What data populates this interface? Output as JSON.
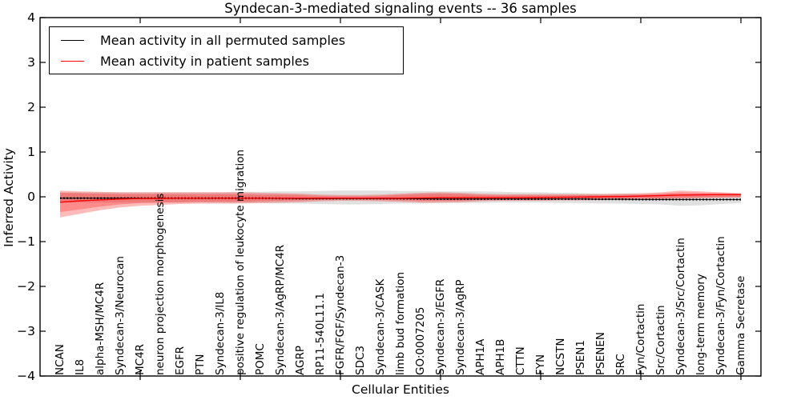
{
  "colors": {
    "permuted_line": "#000000",
    "patient_line": "#ff0000",
    "permuted_band": "rgba(0,0,0,0.12)",
    "patient_band_outer": "rgba(255,0,0,0.27)",
    "patient_band_inner": "rgba(255,0,0,0.25)",
    "axis": "#000000",
    "background": "#ffffff"
  },
  "chart_data": {
    "type": "line",
    "title": "Syndecan-3-mediated signaling events -- 36 samples",
    "xlabel": "Cellular Entities",
    "ylabel": "Inferred Activity",
    "xlim": [
      0,
      36
    ],
    "ylim": [
      -4,
      4
    ],
    "yticks": [
      -4,
      -3,
      -2,
      -1,
      0,
      1,
      2,
      3,
      4
    ],
    "xticks": [
      5,
      10,
      15,
      20,
      25,
      30,
      35
    ],
    "grid": false,
    "legend_position": "upper left",
    "categories": [
      "NCAN",
      "IL8",
      "alpha-MSH/MC4R",
      "Syndecan-3/Neurocan",
      "MC4R",
      "neuron projection morphogenesis",
      "EGFR",
      "PTN",
      "Syndecan-3/IL8",
      "positive regulation of leukocyte migration",
      "POMC",
      "Syndecan-3/AgRP/MC4R",
      "AGRP",
      "RP11-540L11.1",
      "FGFR/FGF/Syndecan-3",
      "SDC3",
      "Syndecan-3/CASK",
      "limb bud formation",
      "GO:0007205",
      "Syndecan-3/EGFR",
      "Syndecan-3/AgRP",
      "APH1A",
      "APH1B",
      "CTTN",
      "FYN",
      "NCSTN",
      "PSEN1",
      "PSENEN",
      "SRC",
      "Fyn/Cortactin",
      "Src/Cortactin",
      "Syndecan-3/Src/Cortactin",
      "long-term memory",
      "Syndecan-3/Fyn/Cortactin",
      "Gamma Secretase"
    ],
    "series": [
      {
        "name": "Mean activity in all permuted samples",
        "color": "#000000",
        "values": [
          -0.03,
          -0.03,
          -0.03,
          -0.03,
          -0.03,
          -0.03,
          -0.03,
          -0.03,
          -0.03,
          -0.03,
          -0.03,
          -0.035,
          -0.04,
          -0.04,
          -0.04,
          -0.04,
          -0.04,
          -0.04,
          -0.045,
          -0.05,
          -0.05,
          -0.05,
          -0.05,
          -0.05,
          -0.05,
          -0.05,
          -0.05,
          -0.055,
          -0.055,
          -0.06,
          -0.06,
          -0.06,
          -0.06,
          -0.06,
          -0.06
        ],
        "band_top": [
          0.1,
          0.1,
          0.1,
          0.1,
          0.1,
          0.1,
          0.1,
          0.1,
          0.1,
          0.11,
          0.11,
          0.12,
          0.12,
          0.13,
          0.14,
          0.14,
          0.14,
          0.13,
          0.13,
          0.12,
          0.12,
          0.12,
          0.11,
          0.1,
          0.1,
          0.09,
          0.08,
          0.07,
          0.07,
          0.06,
          0.06,
          0.06,
          0.05,
          0.05,
          0.04
        ],
        "band_bottom": [
          -0.13,
          -0.13,
          -0.13,
          -0.13,
          -0.13,
          -0.13,
          -0.13,
          -0.13,
          -0.13,
          -0.14,
          -0.14,
          -0.15,
          -0.15,
          -0.16,
          -0.17,
          -0.17,
          -0.16,
          -0.15,
          -0.15,
          -0.14,
          -0.14,
          -0.14,
          -0.13,
          -0.13,
          -0.13,
          -0.14,
          -0.14,
          -0.15,
          -0.15,
          -0.16,
          -0.17,
          -0.2,
          -0.19,
          -0.16,
          -0.14
        ]
      },
      {
        "name": "Mean activity in patient samples",
        "color": "#ff0000",
        "values": [
          -0.12,
          -0.09,
          -0.07,
          -0.05,
          -0.04,
          -0.035,
          -0.03,
          -0.03,
          -0.03,
          -0.03,
          -0.03,
          -0.03,
          -0.03,
          -0.03,
          -0.03,
          -0.03,
          -0.03,
          -0.03,
          -0.025,
          -0.02,
          -0.02,
          -0.02,
          -0.02,
          -0.02,
          -0.015,
          -0.01,
          -0.005,
          0,
          0.005,
          0.015,
          0.025,
          0.04,
          0.045,
          0.05,
          0.05
        ],
        "band_outer_top": [
          0.14,
          0.12,
          0.11,
          0.1,
          0.1,
          0.1,
          0.1,
          0.1,
          0.1,
          0.1,
          0.09,
          0.08,
          0.07,
          0.05,
          0.04,
          0.04,
          0.05,
          0.07,
          0.09,
          0.1,
          0.09,
          0.07,
          0.06,
          0.06,
          0.06,
          0.06,
          0.06,
          0.06,
          0.07,
          0.08,
          0.1,
          0.14,
          0.12,
          0.1,
          0.08
        ],
        "band_outer_bottom": [
          -0.46,
          -0.38,
          -0.3,
          -0.24,
          -0.2,
          -0.18,
          -0.16,
          -0.15,
          -0.15,
          -0.15,
          -0.14,
          -0.13,
          -0.12,
          -0.1,
          -0.09,
          -0.09,
          -0.1,
          -0.11,
          -0.13,
          -0.13,
          -0.12,
          -0.1,
          -0.09,
          -0.09,
          -0.09,
          -0.08,
          -0.08,
          -0.07,
          -0.07,
          -0.06,
          -0.05,
          -0.04,
          -0.03,
          -0.02,
          -0.02
        ],
        "band_inner_top": [
          0.09,
          0.08,
          0.07,
          0.06,
          0.06,
          0.06,
          0.06,
          0.06,
          0.06,
          0.06,
          0.05,
          0.05,
          0.04,
          0.02,
          0.01,
          0.01,
          0.02,
          0.04,
          0.06,
          0.07,
          0.06,
          0.04,
          0.03,
          0.03,
          0.03,
          0.03,
          0.03,
          0.03,
          0.04,
          0.05,
          0.07,
          0.1,
          0.09,
          0.08,
          0.07
        ],
        "band_inner_bottom": [
          -0.34,
          -0.28,
          -0.22,
          -0.17,
          -0.14,
          -0.13,
          -0.12,
          -0.11,
          -0.11,
          -0.11,
          -0.1,
          -0.09,
          -0.08,
          -0.07,
          -0.06,
          -0.06,
          -0.07,
          -0.08,
          -0.09,
          -0.09,
          -0.09,
          -0.07,
          -0.06,
          -0.06,
          -0.06,
          -0.05,
          -0.05,
          -0.04,
          -0.04,
          -0.03,
          -0.03,
          -0.02,
          -0.01,
          -0.01,
          0
        ]
      }
    ]
  }
}
